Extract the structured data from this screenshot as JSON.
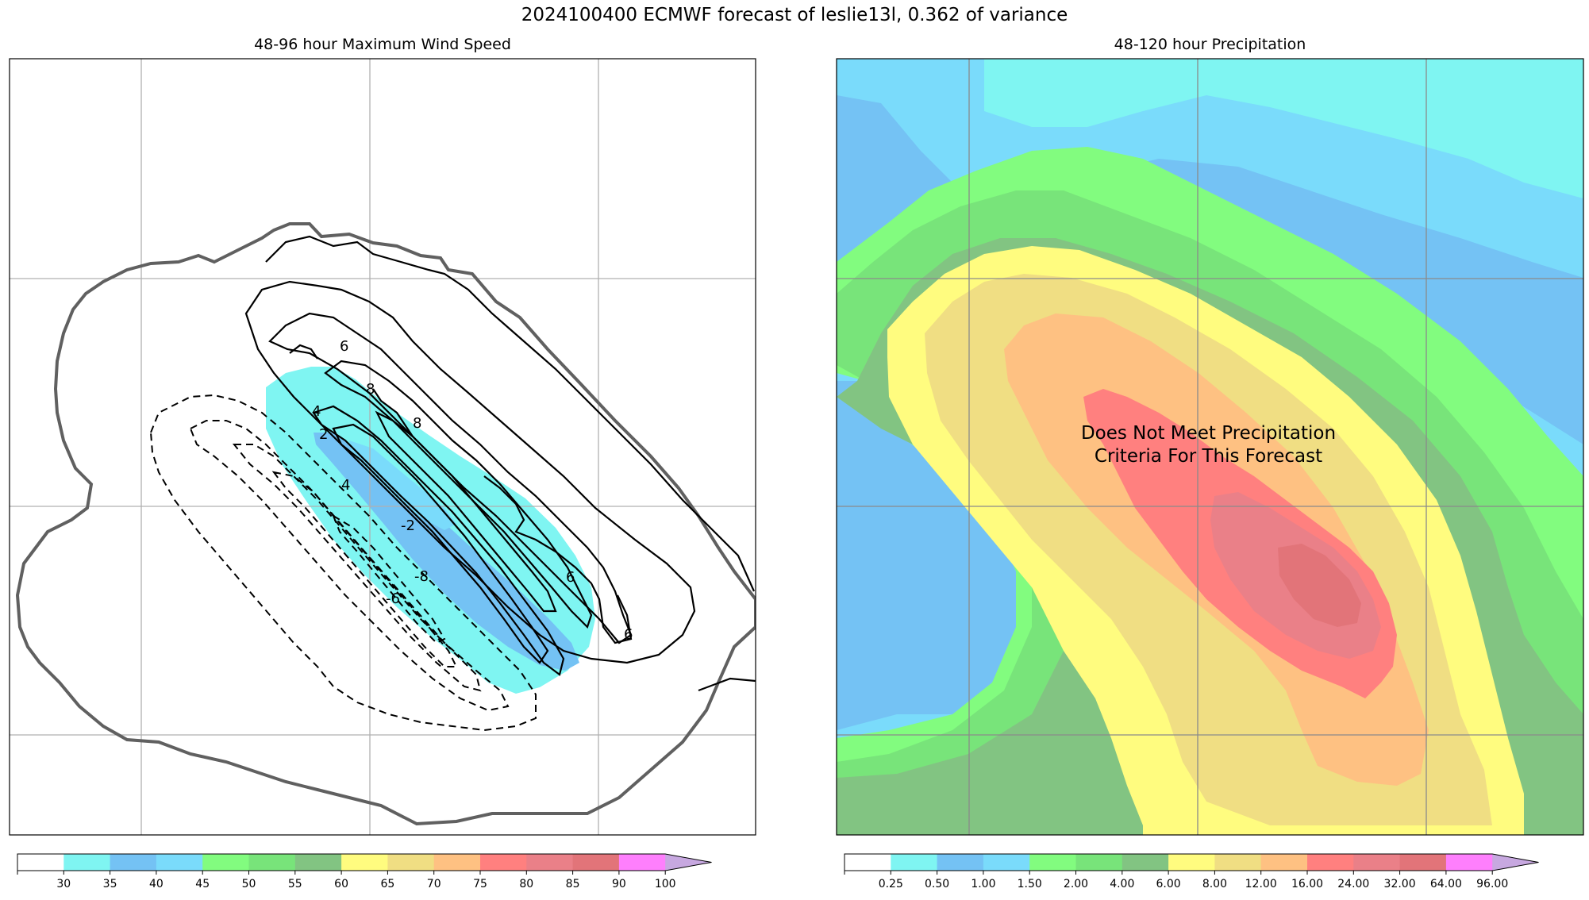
{
  "figure": {
    "title": "2024100400 ECMWF forecast of leslie13l, 0.362 of variance"
  },
  "wind_panel": {
    "title": "48-96 hour Maximum Wind Speed",
    "colorbar": {
      "ticks": [
        "30",
        "35",
        "40",
        "45",
        "50",
        "55",
        "60",
        "65",
        "70",
        "75",
        "80",
        "85",
        "90",
        "100"
      ],
      "colors": [
        "#ffffff",
        "#7ff5f2",
        "#74c2f4",
        "#7adbfb",
        "#82fc7f",
        "#78e47a",
        "#82c482",
        "#fffc7f",
        "#f0de83",
        "#fec182",
        "#ff807f",
        "#ea8088",
        "#e27479",
        "#fe7ffd",
        "#c7a8e0"
      ]
    },
    "contour_labels": [
      "6",
      "8",
      "8",
      "4",
      "2",
      "4",
      "-2",
      "-8",
      "-6",
      "6",
      "6"
    ]
  },
  "precip_panel": {
    "title": "48-120 hour Precipitation",
    "notice_line1": "Does Not Meet Precipitation",
    "notice_line2": "Criteria For This Forecast",
    "colorbar": {
      "ticks": [
        "0.25",
        "0.50",
        "1.00",
        "1.50",
        "2.00",
        "4.00",
        "6.00",
        "8.00",
        "12.00",
        "16.00",
        "24.00",
        "32.00",
        "64.00",
        "96.00"
      ],
      "colors": [
        "#ffffff",
        "#7ff5f2",
        "#74c2f4",
        "#7adbfb",
        "#82fc7f",
        "#78e47a",
        "#82c482",
        "#fffc7f",
        "#f0de83",
        "#fec182",
        "#ff807f",
        "#ea8088",
        "#e27479",
        "#fe7ffd",
        "#c7a8e0"
      ]
    }
  }
}
